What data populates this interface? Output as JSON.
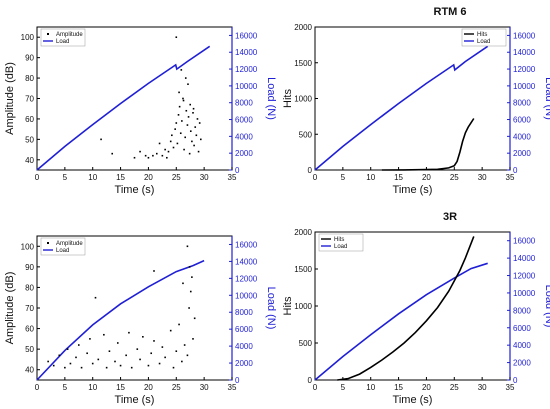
{
  "colors": {
    "load": "#1f1fd6",
    "scatter": "#000000",
    "hits": "#000000",
    "axis": "#000000"
  },
  "chart_data": [
    {
      "panel": "top-left",
      "type": "line",
      "title": "",
      "xlabel": "Time (s)",
      "ylabel": "Amplitude (dB)",
      "y2label": "Load (N)",
      "xlim": [
        0,
        35
      ],
      "ylim": [
        35,
        105
      ],
      "y2lim": [
        0,
        17000
      ],
      "xticks": [
        0,
        5,
        10,
        15,
        20,
        25,
        30,
        35
      ],
      "yticks": [
        40,
        50,
        60,
        70,
        80,
        90,
        100
      ],
      "y2ticks": [
        0,
        2000,
        4000,
        6000,
        8000,
        10000,
        12000,
        14000,
        16000
      ],
      "legend": [
        "Amplitude",
        "Load"
      ],
      "legend_position": "top-left",
      "series": [
        {
          "name": "Load",
          "axis": "right",
          "x": [
            0,
            5,
            10,
            15,
            20,
            24.9,
            25.1,
            27,
            31
          ],
          "y": [
            0,
            2800,
            5400,
            7900,
            10300,
            12500,
            12000,
            12900,
            14700
          ]
        },
        {
          "name": "Amplitude",
          "axis": "left",
          "kind": "scatter",
          "x": [
            11.5,
            13.5,
            17.5,
            18.5,
            19.5,
            20.0,
            20.8,
            21.5,
            22.0,
            22.5,
            23.0,
            23.3,
            23.6,
            24.0,
            24.2,
            24.5,
            24.8,
            25.0,
            25.2,
            25.4,
            25.6,
            25.8,
            26.0,
            26.2,
            26.4,
            26.6,
            26.8,
            27.0,
            27.2,
            27.4,
            27.6,
            27.8,
            28.0,
            28.2,
            28.4,
            28.6,
            28.8,
            29.0,
            29.2,
            29.4,
            25.0,
            25.9,
            26.7,
            27.1,
            25.5,
            26.3,
            27.5,
            28.1
          ],
          "y": [
            50,
            43,
            41,
            44,
            42,
            41,
            42,
            43,
            48,
            42,
            45,
            41,
            44,
            49,
            52,
            46,
            55,
            58,
            48,
            62,
            66,
            53,
            59,
            70,
            45,
            51,
            64,
            57,
            61,
            43,
            54,
            49,
            63,
            47,
            56,
            52,
            60,
            44,
            58,
            50,
            100,
            84,
            80,
            77,
            73,
            69,
            67,
            65
          ]
        }
      ]
    },
    {
      "panel": "top-right",
      "type": "line",
      "title": "RTM 6",
      "xlabel": "Time (s)",
      "ylabel": "Hits",
      "y2label": "Load (N)",
      "xlim": [
        0,
        35
      ],
      "ylim": [
        0,
        2000
      ],
      "y2lim": [
        0,
        17000
      ],
      "xticks": [
        0,
        5,
        10,
        15,
        20,
        25,
        30,
        35
      ],
      "yticks": [
        0,
        500,
        1000,
        1500,
        2000
      ],
      "y2ticks": [
        0,
        2000,
        4000,
        6000,
        8000,
        10000,
        12000,
        14000,
        16000
      ],
      "legend": [
        "Hits",
        "Load"
      ],
      "legend_position": "top-right",
      "series": [
        {
          "name": "Load",
          "axis": "right",
          "x": [
            0,
            5,
            10,
            15,
            20,
            24.9,
            25.1,
            27,
            31
          ],
          "y": [
            0,
            2800,
            5400,
            7900,
            10300,
            12500,
            11900,
            12900,
            14700
          ]
        },
        {
          "name": "Hits",
          "axis": "left",
          "x": [
            12,
            16,
            20,
            22,
            24,
            25,
            25.5,
            26,
            26.5,
            27,
            27.5,
            28,
            28.5
          ],
          "y": [
            0,
            2,
            5,
            10,
            30,
            60,
            120,
            250,
            400,
            520,
            600,
            660,
            720
          ]
        }
      ]
    },
    {
      "panel": "bottom-left",
      "type": "line",
      "title": "",
      "xlabel": "Time (s)",
      "ylabel": "Amplitude (dB)",
      "y2label": "Load (N)",
      "xlim": [
        0,
        35
      ],
      "ylim": [
        35,
        105
      ],
      "y2lim": [
        0,
        17000
      ],
      "xticks": [
        0,
        5,
        10,
        15,
        20,
        25,
        30,
        35
      ],
      "yticks": [
        40,
        50,
        60,
        70,
        80,
        90,
        100
      ],
      "y2ticks": [
        0,
        2000,
        4000,
        6000,
        8000,
        10000,
        12000,
        14000,
        16000
      ],
      "legend": [
        "Amplitude",
        "Load"
      ],
      "legend_position": "top-left",
      "series": [
        {
          "name": "Load",
          "axis": "right",
          "x": [
            0,
            5,
            10,
            15,
            20,
            25,
            28,
            30
          ],
          "y": [
            0,
            3500,
            6500,
            9000,
            11000,
            12800,
            13500,
            14100
          ]
        },
        {
          "name": "Amplitude",
          "axis": "left",
          "kind": "scatter",
          "x": [
            2,
            3,
            4,
            5,
            5.5,
            6,
            7,
            7.5,
            8,
            9,
            9.5,
            10,
            11,
            12,
            12.5,
            13,
            14,
            14.5,
            15,
            16,
            16.5,
            17,
            18,
            18.5,
            19,
            20,
            20.5,
            21,
            22,
            22.5,
            23,
            24,
            24.5,
            25,
            25.5,
            26,
            26.5,
            27,
            27.3,
            27.6,
            28,
            28.3,
            27.0,
            27.4,
            27.8,
            21.0,
            10.5,
            26.2
          ],
          "y": [
            44,
            42,
            47,
            41,
            50,
            43,
            46,
            52,
            41,
            48,
            55,
            43,
            45,
            57,
            41,
            49,
            44,
            53,
            42,
            47,
            58,
            41,
            50,
            45,
            56,
            42,
            48,
            54,
            43,
            51,
            46,
            59,
            41,
            49,
            62,
            44,
            52,
            47,
            70,
            78,
            55,
            65,
            100,
            90,
            85,
            88,
            75,
            82
          ]
        }
      ]
    },
    {
      "panel": "bottom-right",
      "type": "line",
      "title": "3R",
      "xlabel": "Time (s)",
      "ylabel": "Hits",
      "y2label": "Load (N)",
      "xlim": [
        0,
        35
      ],
      "ylim": [
        0,
        2000
      ],
      "y2lim": [
        0,
        17000
      ],
      "xticks": [
        0,
        5,
        10,
        15,
        20,
        25,
        30,
        35
      ],
      "yticks": [
        0,
        500,
        1000,
        1500,
        2000
      ],
      "y2ticks": [
        0,
        2000,
        4000,
        6000,
        8000,
        10000,
        12000,
        14000,
        16000
      ],
      "legend": [
        "Hits",
        "Load"
      ],
      "legend_position": "top-left",
      "series": [
        {
          "name": "Load",
          "axis": "right",
          "x": [
            0,
            5,
            10,
            15,
            20,
            25,
            28,
            31
          ],
          "y": [
            0,
            2700,
            5200,
            7600,
            9800,
            11700,
            12800,
            13400
          ]
        },
        {
          "name": "Hits",
          "axis": "left",
          "x": [
            4,
            6,
            8,
            10,
            12,
            14,
            16,
            18,
            20,
            22,
            24,
            26,
            27,
            28.5
          ],
          "y": [
            0,
            20,
            80,
            170,
            270,
            380,
            500,
            640,
            800,
            980,
            1200,
            1480,
            1650,
            1940
          ]
        }
      ]
    }
  ]
}
